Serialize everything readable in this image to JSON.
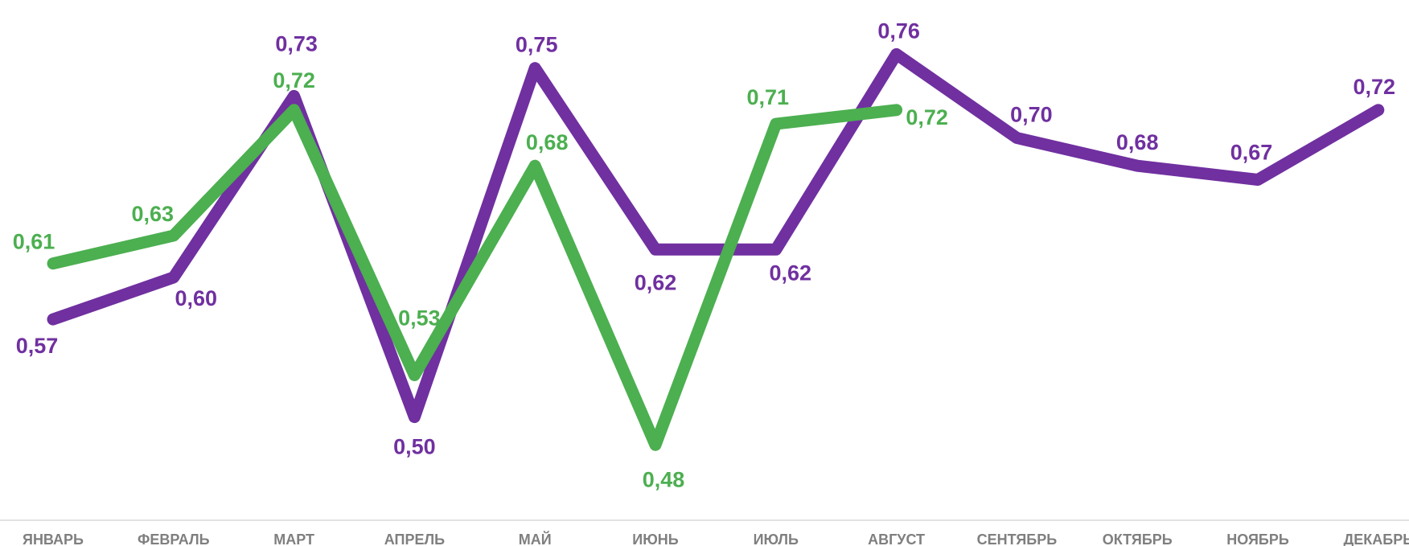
{
  "chart_data": {
    "type": "line",
    "title": "",
    "xlabel": "",
    "ylabel": "",
    "categories": [
      "ЯНВАРЬ",
      "ФЕВРАЛЬ",
      "МАРТ",
      "АПРЕЛЬ",
      "МАЙ",
      "ИЮНЬ",
      "ИЮЛЬ",
      "АВГУСТ",
      "СЕНТЯБРЬ",
      "ОКТЯБРЬ",
      "НОЯБРЬ",
      "ДЕКАБРЬ"
    ],
    "series": [
      {
        "color": "#7030a0",
        "values": [
          0.57,
          0.6,
          0.73,
          0.5,
          0.75,
          0.62,
          0.62,
          0.76,
          0.7,
          0.68,
          0.67,
          0.72
        ],
        "labels": [
          "0,57",
          "0,60",
          "0,73",
          "0,50",
          "0,75",
          "0,62",
          "0,62",
          "0,76",
          "0,70",
          "0,68",
          "0,67",
          "0,72"
        ]
      },
      {
        "color": "#4caf50",
        "values": [
          0.61,
          0.63,
          0.72,
          0.53,
          0.68,
          0.48,
          0.71,
          0.72,
          null,
          null,
          null,
          null
        ],
        "labels": [
          "0,61",
          "0,63",
          "0,72",
          "0,53",
          "0,68",
          "0,48",
          "0,71",
          "0,72",
          "",
          "",
          "",
          ""
        ]
      }
    ],
    "ylim": [
      0.46,
      0.77
    ],
    "grid": false,
    "legend": "none"
  }
}
